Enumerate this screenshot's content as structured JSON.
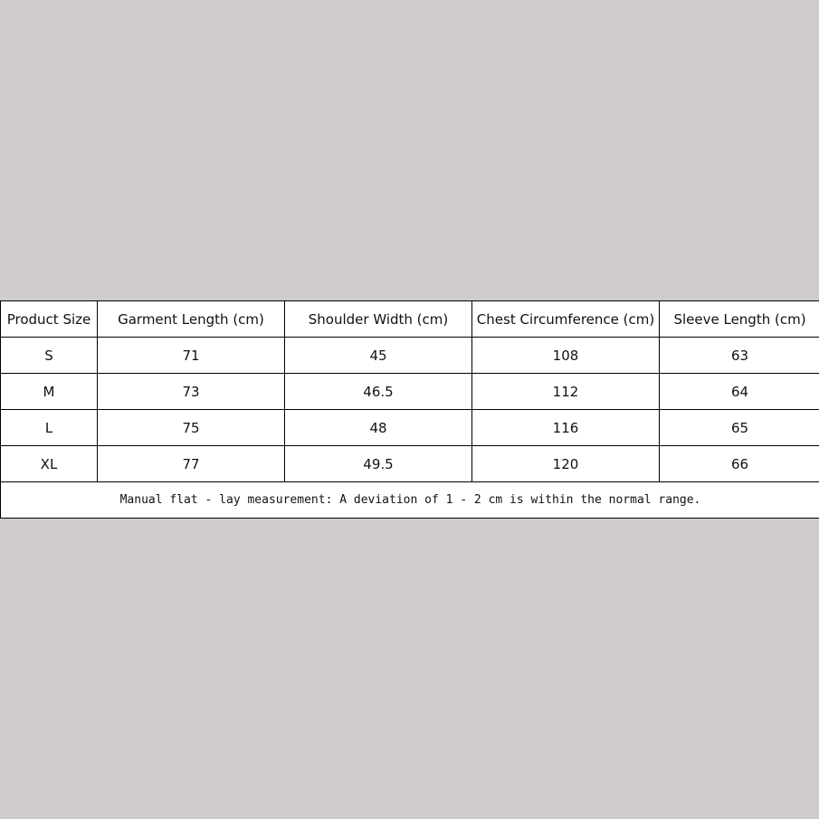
{
  "table": {
    "headers": [
      "Product Size",
      "Garment Length (cm)",
      "Shoulder Width (cm)",
      "Chest Circumference (cm)",
      "Sleeve Length (cm)"
    ],
    "rows": [
      [
        "S",
        "71",
        "45",
        "108",
        "63"
      ],
      [
        "M",
        "73",
        "46.5",
        "112",
        "64"
      ],
      [
        "L",
        "75",
        "48",
        "116",
        "65"
      ],
      [
        "XL",
        "77",
        "49.5",
        "120",
        "66"
      ]
    ],
    "note": "Manual flat - lay measurement: A deviation of 1 - 2 cm is within the normal range."
  }
}
